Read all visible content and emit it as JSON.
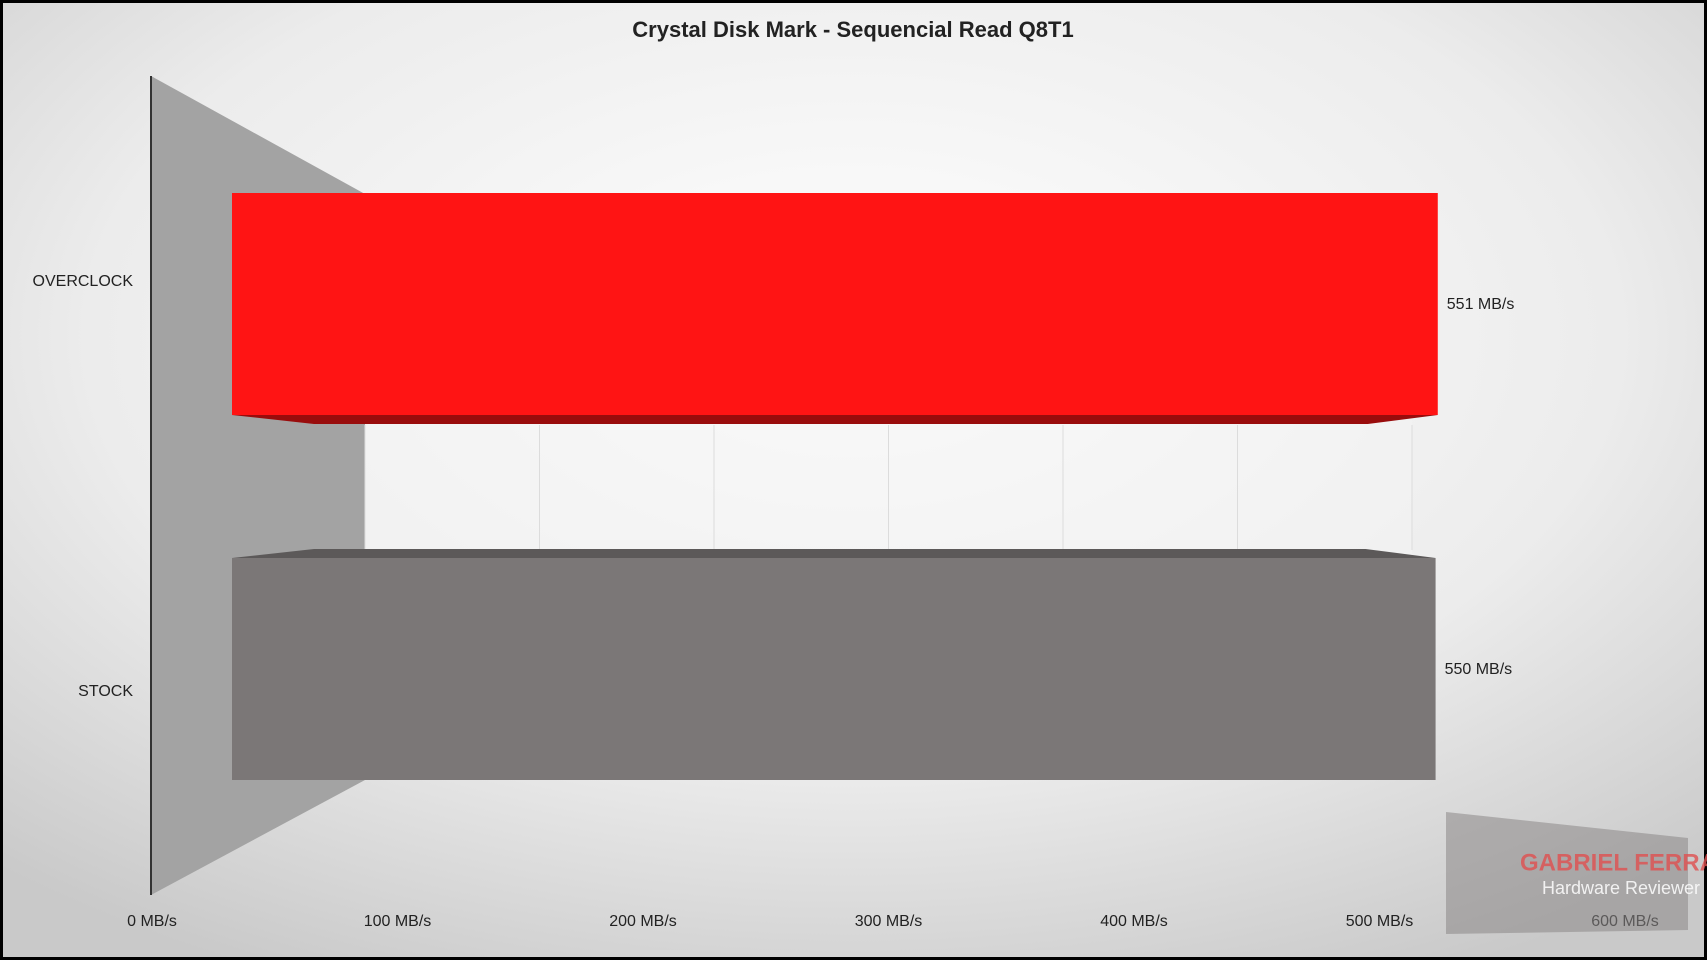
{
  "chart_data": {
    "type": "bar",
    "orientation": "horizontal",
    "title": "Crystal Disk Mark - Sequencial Read Q8T1",
    "categories": [
      "OVERCLOCK",
      "STOCK"
    ],
    "values": [
      551,
      550
    ],
    "value_labels": [
      "551 MB/s",
      "550 MB/s"
    ],
    "colors": [
      "#ff1414",
      "#7b7777"
    ],
    "xlim": [
      0,
      600
    ],
    "xticks": [
      {
        "value": 0,
        "label": "0 MB/s"
      },
      {
        "value": 100,
        "label": "100 MB/s"
      },
      {
        "value": 200,
        "label": "200 MB/s"
      },
      {
        "value": 300,
        "label": "300 MB/s"
      },
      {
        "value": 400,
        "label": "400 MB/s"
      },
      {
        "value": 500,
        "label": "500 MB/s"
      },
      {
        "value": 600,
        "label": "600 MB/s"
      }
    ],
    "grid": true
  },
  "watermark": {
    "name": "GABRIEL FERRAZ",
    "subtitle": "Hardware Reviewer"
  }
}
